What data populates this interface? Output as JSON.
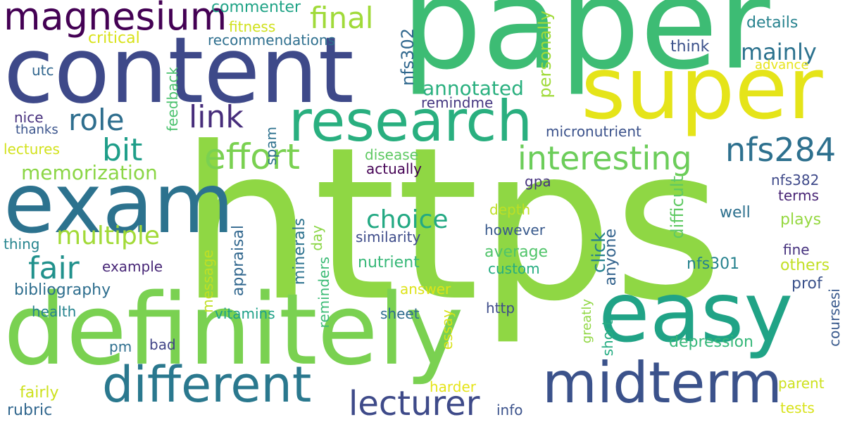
{
  "cloud": {
    "words": [
      {
        "text": "https",
        "color": "#8fd744"
      },
      {
        "text": "paper",
        "color": "#3dbc74"
      },
      {
        "text": "content",
        "color": "#3e4989"
      },
      {
        "text": "definitely",
        "color": "#7ad151"
      },
      {
        "text": "exam",
        "color": "#2c728e"
      },
      {
        "text": "super",
        "color": "#e5e419"
      },
      {
        "text": "easy",
        "color": "#20a386"
      },
      {
        "text": "research",
        "color": "#29af7f"
      },
      {
        "text": "midterm",
        "color": "#3b528b"
      },
      {
        "text": "different",
        "color": "#2a788e"
      },
      {
        "text": "magnesium",
        "color": "#440154"
      },
      {
        "text": "lecturer",
        "color": "#3e4a89"
      },
      {
        "text": "effort",
        "color": "#7ad151"
      },
      {
        "text": "interesting",
        "color": "#6ccd5a"
      },
      {
        "text": "nfs284",
        "color": "#2d708e"
      },
      {
        "text": "final",
        "color": "#a0da39"
      },
      {
        "text": "role",
        "color": "#2e6e8e"
      },
      {
        "text": "link",
        "color": "#472d7b"
      },
      {
        "text": "bit",
        "color": "#1f9e89"
      },
      {
        "text": "fair",
        "color": "#21918c"
      },
      {
        "text": "multiple",
        "color": "#a2da37"
      },
      {
        "text": "choice",
        "color": "#23a983"
      },
      {
        "text": "memorization",
        "color": "#8bd646"
      },
      {
        "text": "mainly",
        "color": "#2c728e"
      },
      {
        "text": "annotated",
        "color": "#2ab07f"
      },
      {
        "text": "commenter",
        "color": "#20a386"
      },
      {
        "text": "critical",
        "color": "#d8e219"
      },
      {
        "text": "fitness",
        "color": "#d0e11c"
      },
      {
        "text": "recommendations",
        "color": "#2e6f8e"
      },
      {
        "text": "details",
        "color": "#26828e"
      },
      {
        "text": "think",
        "color": "#3b518b"
      },
      {
        "text": "advance",
        "color": "#e7e419"
      },
      {
        "text": "utc",
        "color": "#31668e"
      },
      {
        "text": "nfs302",
        "color": "#31688e"
      },
      {
        "text": "personally",
        "color": "#a0da39"
      },
      {
        "text": "remindme",
        "color": "#453781"
      },
      {
        "text": "nice",
        "color": "#472f7d"
      },
      {
        "text": "thanks",
        "color": "#3a548c"
      },
      {
        "text": "feedback",
        "color": "#4ac16d"
      },
      {
        "text": "spam",
        "color": "#2d718e"
      },
      {
        "text": "micronutrient",
        "color": "#3b528b"
      },
      {
        "text": "lectures",
        "color": "#d2e21b"
      },
      {
        "text": "disease",
        "color": "#5ec962"
      },
      {
        "text": "actually",
        "color": "#440154"
      },
      {
        "text": "nfs382",
        "color": "#3e4989"
      },
      {
        "text": "terms",
        "color": "#482475"
      },
      {
        "text": "gpa",
        "color": "#46337f"
      },
      {
        "text": "difficult",
        "color": "#5ec962"
      },
      {
        "text": "depth",
        "color": "#bddf26"
      },
      {
        "text": "click",
        "color": "#26818e"
      },
      {
        "text": "anyone",
        "color": "#33638d"
      },
      {
        "text": "well",
        "color": "#2d708e"
      },
      {
        "text": "plays",
        "color": "#95d840"
      },
      {
        "text": "thing",
        "color": "#25848e"
      },
      {
        "text": "similarity",
        "color": "#3e4c8a"
      },
      {
        "text": "however",
        "color": "#38598c"
      },
      {
        "text": "appraisal",
        "color": "#31678e"
      },
      {
        "text": "day",
        "color": "#8bd646"
      },
      {
        "text": "minerals",
        "color": "#2c728e"
      },
      {
        "text": "average",
        "color": "#50c46a"
      },
      {
        "text": "custom",
        "color": "#26ad81"
      },
      {
        "text": "fine",
        "color": "#46327e"
      },
      {
        "text": "example",
        "color": "#482777"
      },
      {
        "text": "nutrient",
        "color": "#37b878"
      },
      {
        "text": "nfs301",
        "color": "#26828e"
      },
      {
        "text": "others",
        "color": "#c2df23"
      },
      {
        "text": "bibliography",
        "color": "#2e6e8e"
      },
      {
        "text": "message",
        "color": "#c0df25"
      },
      {
        "text": "reminders",
        "color": "#3bbb75"
      },
      {
        "text": "answer",
        "color": "#dde318"
      },
      {
        "text": "prof",
        "color": "#3b528b"
      },
      {
        "text": "health",
        "color": "#25838e"
      },
      {
        "text": "vitamins",
        "color": "#1fa188"
      },
      {
        "text": "sheet",
        "color": "#2f6c8e"
      },
      {
        "text": "http",
        "color": "#3e4c8a"
      },
      {
        "text": "coursesi",
        "color": "#38598c"
      },
      {
        "text": "essay",
        "color": "#d8e219"
      },
      {
        "text": "greatly",
        "color": "#90d743"
      },
      {
        "text": "short",
        "color": "#25ac82"
      },
      {
        "text": "pm",
        "color": "#2e6e8e"
      },
      {
        "text": "bad",
        "color": "#414487"
      },
      {
        "text": "depression",
        "color": "#35b779"
      },
      {
        "text": "parent",
        "color": "#cde11d"
      },
      {
        "text": "fairly",
        "color": "#cde11d"
      },
      {
        "text": "harder",
        "color": "#e5e419"
      },
      {
        "text": "rubric",
        "color": "#31678e"
      },
      {
        "text": "info",
        "color": "#3b528b"
      },
      {
        "text": "tests",
        "color": "#d8e219"
      }
    ]
  }
}
